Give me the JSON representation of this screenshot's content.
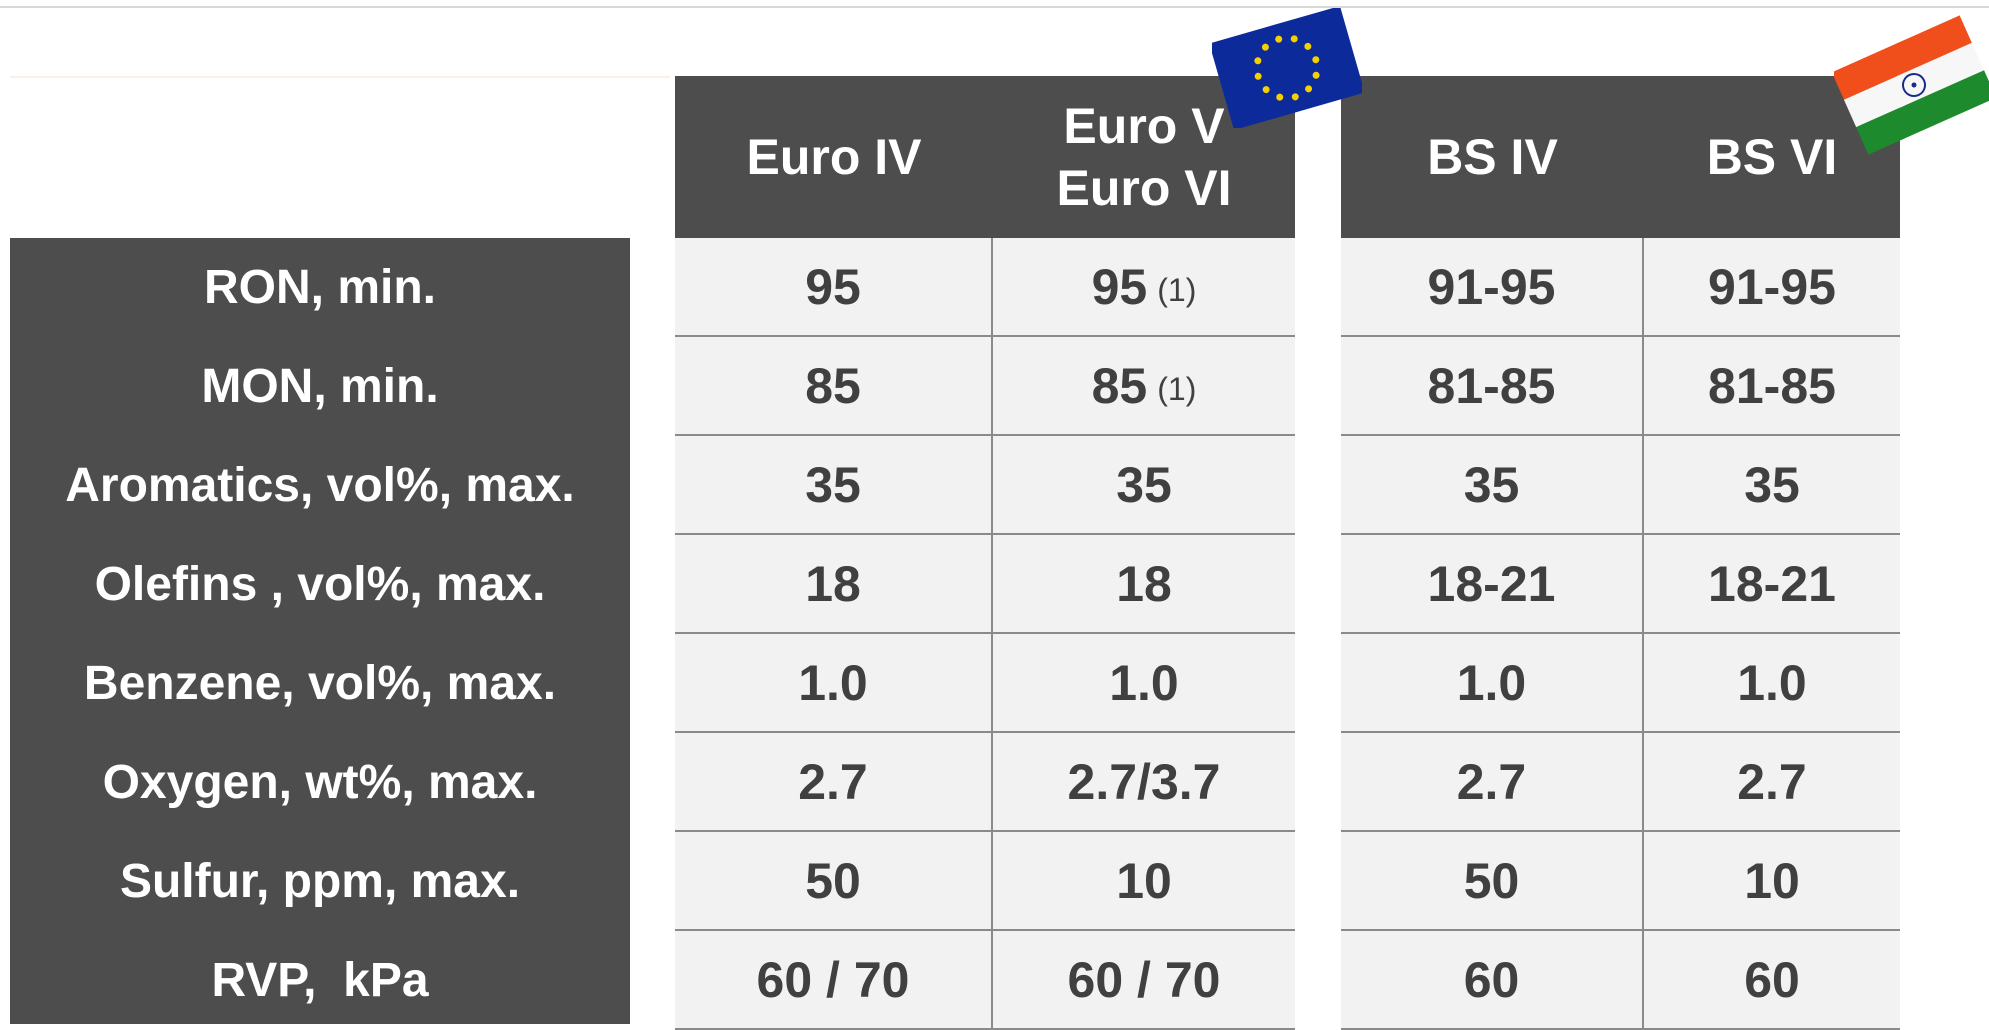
{
  "header_columns": [
    [
      "Euro IV"
    ],
    [
      "Euro V",
      "Euro VI"
    ],
    [
      "BS IV"
    ],
    [
      "BS VI"
    ]
  ],
  "rows": [
    {
      "label": "RON, min.",
      "cells": [
        {
          "text": "95"
        },
        {
          "text": "95",
          "note": "(1)"
        },
        {
          "text": "91-95"
        },
        {
          "text": "91-95"
        }
      ]
    },
    {
      "label": "MON, min.",
      "cells": [
        {
          "text": "85"
        },
        {
          "text": "85",
          "note": "(1)"
        },
        {
          "text": "81-85"
        },
        {
          "text": "81-85"
        }
      ]
    },
    {
      "label": "Aromatics, vol%, max.",
      "cells": [
        {
          "text": "35"
        },
        {
          "text": "35"
        },
        {
          "text": "35"
        },
        {
          "text": "35"
        }
      ]
    },
    {
      "label": "Olefins , vol%, max.",
      "cells": [
        {
          "text": "18"
        },
        {
          "text": "18"
        },
        {
          "text": "18-21"
        },
        {
          "text": "18-21"
        }
      ]
    },
    {
      "label": "Benzene, vol%, max.",
      "cells": [
        {
          "text": "1.0"
        },
        {
          "text": "1.0"
        },
        {
          "text": "1.0"
        },
        {
          "text": "1.0"
        }
      ]
    },
    {
      "label": "Oxygen, wt%, max.",
      "cells": [
        {
          "text": "2.7"
        },
        {
          "text": "2.7/3.7"
        },
        {
          "text": "2.7"
        },
        {
          "text": "2.7"
        }
      ]
    },
    {
      "label": "Sulfur, ppm, max.",
      "cells": [
        {
          "text": "50"
        },
        {
          "text": "10"
        },
        {
          "text": "50"
        },
        {
          "text": "10"
        }
      ]
    },
    {
      "label": "RVP,  kPa",
      "cells": [
        {
          "text": "60 / 70"
        },
        {
          "text": "60 / 70"
        },
        {
          "text": "60"
        },
        {
          "text": "60"
        }
      ]
    }
  ]
}
